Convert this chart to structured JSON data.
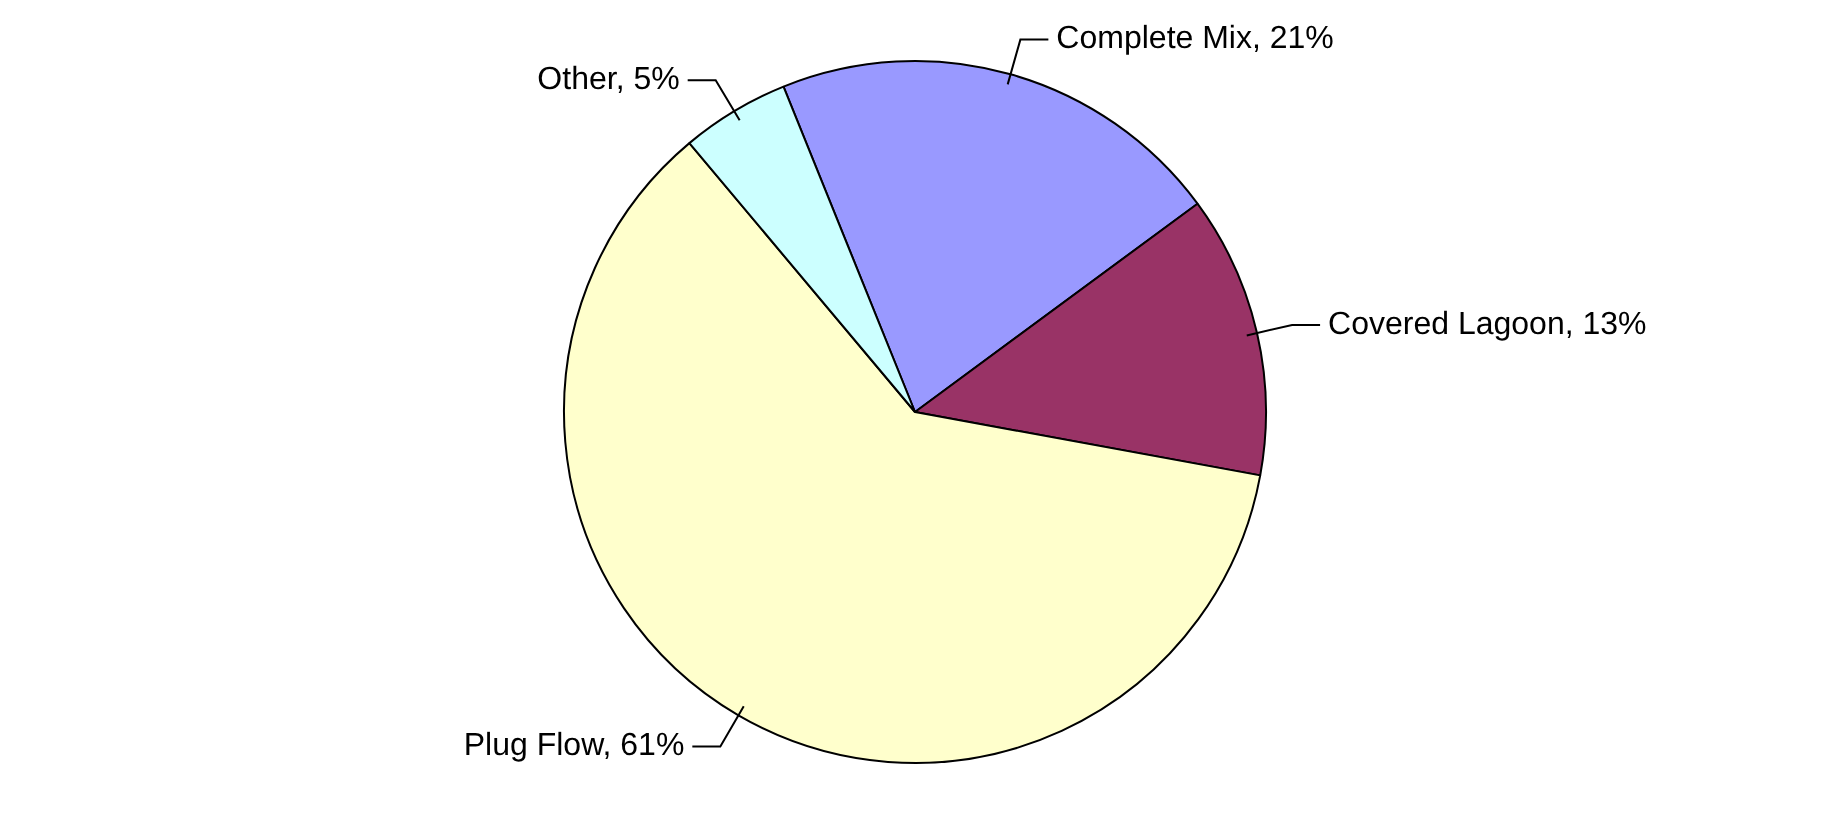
{
  "chart_data": {
    "type": "pie",
    "categories": [
      "Complete Mix",
      "Covered Lagoon",
      "Plug Flow",
      "Other"
    ],
    "values": [
      21,
      13,
      61,
      5
    ],
    "value_labels": [
      "21%",
      "13%",
      "61%",
      "5%"
    ],
    "colors": [
      "#9999ff",
      "#993366",
      "#ffffcc",
      "#ccffff"
    ],
    "legend": false
  }
}
